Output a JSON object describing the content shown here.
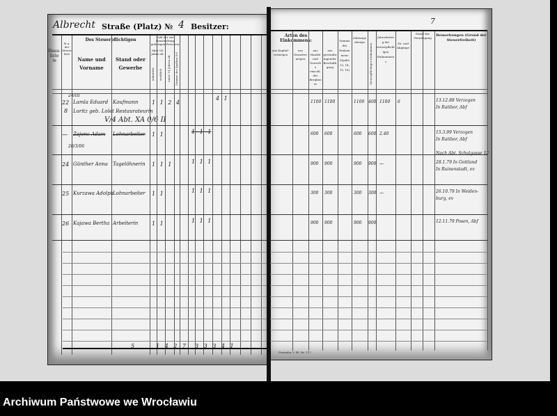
{
  "header": {
    "street_handwritten": "Albrecht",
    "street_label": "Straße (Platz) №",
    "house_number": "4",
    "owner_label": "Besitzer:",
    "page_mark": "7"
  },
  "left_columns": {
    "house_list": "Haus-liste №",
    "register": "№ a. der Steuerliste",
    "taxpayer_group": "Des Steuerpflichtigen",
    "name": "Name und Vorname",
    "occupation": "Stand oder Gewerbe",
    "household": "Zahl der zur Haushaltung gehörigen Personen",
    "over14": "über 14 Jahre alt",
    "male": "männlich",
    "female": "weiblich",
    "under14": "unter 14 Jahren alt",
    "total": "Summe der Spalten 4-6"
  },
  "right_columns": {
    "income_types": "Arten des Einkommens:",
    "capital": "aus Kapital-vermögen",
    "land": "aus Grundvermögen",
    "trade": "aus Handel und Gewerbe einschl. des Bergbaues",
    "work": "aus gewinnbringender Beschäftigung",
    "sum": "Summe des Einkommens (Spalte 13, 14, 15, 16)",
    "deductions": "Zulässige Abzüge",
    "remaining": "Steuerpflichtiges Einkommen",
    "annual": "Jahresbetrag der steuerpflichtigen Einkommens",
    "additions": "Zu- und Abgänge",
    "assessment": "Stand der Veranlagung",
    "remarks": "Bemerkungen (Grund der Steuerfreiheit)"
  },
  "rows": [
    {
      "no": "22",
      "sub": "8",
      "reg": "24/III",
      "name": "Lamla Eduard",
      "occupation": "Kaufmann",
      "line2": "Loritz geb. Lolet Restaurateurin",
      "counts": "1 1 2 4",
      "note": "V/4 Abt. XA 0/6 II",
      "extra": "4 1",
      "income": [
        "1100",
        "1100",
        "1100",
        "400",
        "1100",
        "6"
      ],
      "remark": [
        "13.12.88 Verzogen",
        "In Ratibor, Abf"
      ]
    },
    {
      "no": "—",
      "sub": "",
      "reg": "20/3/06",
      "name": "Zajonc Adam",
      "occupation": "Lohnarbeiter",
      "line2": "",
      "counts": "1 1",
      "note": "",
      "extra": "1 1 1",
      "income": [
        "600",
        "600",
        "600",
        "600",
        "2.40"
      ],
      "remark": [
        "15.3.99 Verzogen",
        "In Ratibor, Abf",
        "Nach Abt. Schulgasse 12"
      ]
    },
    {
      "no": "24",
      "sub": "",
      "reg": "",
      "name": "Günther Anna",
      "occupation": "Tagelöhnerin",
      "line2": "",
      "counts": "1 1 1",
      "note": "",
      "extra": "1 1 1",
      "income": [
        "900",
        "900",
        "900",
        "900",
        "—"
      ],
      "remark": [
        "28.1.79 In Gottland",
        "In Ruinenstadt, ev"
      ]
    },
    {
      "no": "25",
      "sub": "",
      "reg": "",
      "name": "Kurzawa Adolph",
      "occupation": "Lohnarbeiter",
      "line2": "",
      "counts": "1 1",
      "note": "",
      "extra": "1 1 1",
      "income": [
        "300",
        "300",
        "300",
        "300",
        "—"
      ],
      "remark": [
        "26.10.79 In Weiden-",
        "burg, ev"
      ]
    },
    {
      "no": "26",
      "sub": "",
      "reg": "",
      "name": "Kajawa Bertha",
      "occupation": "Arbeiterin",
      "line2": "",
      "counts": "1 1",
      "note": "",
      "extra": "1 1 1",
      "income": [
        "900",
        "900",
        "900",
        "900"
      ],
      "remark": [
        "12.11.79 Posen, Abf"
      ]
    }
  ],
  "footer": {
    "count": "5",
    "totals_a": "1 4 2 7",
    "totals_b": "3 3 3 4 1",
    "printer": "Formular V. Bl. Nr. 117"
  },
  "caption": "Archiwum Państwowe we Wrocławiu"
}
